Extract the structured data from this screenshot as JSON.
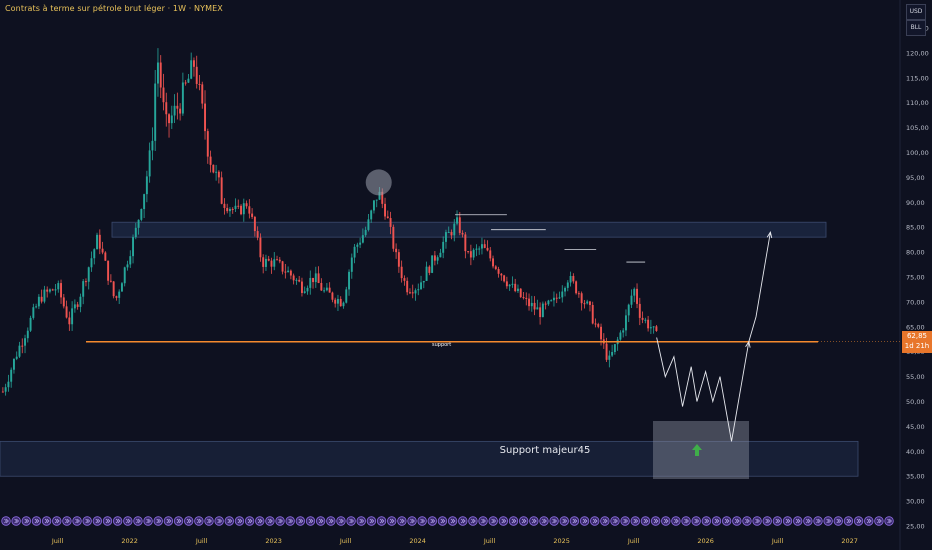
{
  "header": {
    "title": "Contrats à terme sur pétrole brut léger · 1W · NYMEX"
  },
  "currency": {
    "usd": "USD",
    "unit": "BLL"
  },
  "price_tag": {
    "value": "62,85",
    "countdown": "1d 21h"
  },
  "annotations": {
    "support": "support",
    "major_support": "Support majeur45"
  },
  "colors": {
    "up": "#26a69a",
    "down": "#ef5350",
    "support_line": "#f58a2e",
    "zone": "#1e2a46",
    "bg": "#0e1120"
  },
  "chart_data": {
    "type": "candlestick",
    "title": "Contrats à terme sur pétrole brut léger · 1W · NYMEX",
    "ylim": [
      23,
      127
    ],
    "y_ticks": [
      "25,00",
      "30,00",
      "35,00",
      "40,00",
      "45,00",
      "50,00",
      "55,00",
      "60,00",
      "65,00",
      "70,00",
      "75,00",
      "80,00",
      "85,00",
      "90,00",
      "95,00",
      "100,00",
      "105,00",
      "110,00",
      "115,00",
      "120,00",
      "125,00"
    ],
    "x_ticks": [
      "Juill",
      "2022",
      "Juill",
      "2023",
      "Juill",
      "2024",
      "Juill",
      "2025",
      "Juill",
      "2026",
      "Juill",
      "2027"
    ],
    "xlim": [
      2021.1,
      2027.35
    ],
    "x_tick_values": [
      2021.5,
      2022.0,
      2022.5,
      2023.0,
      2023.5,
      2024.0,
      2024.5,
      2025.0,
      2025.5,
      2026.0,
      2026.5,
      2027.0
    ],
    "price_anchors": [
      [
        2021.12,
        52
      ],
      [
        2021.22,
        60
      ],
      [
        2021.38,
        71
      ],
      [
        2021.5,
        73
      ],
      [
        2021.58,
        66
      ],
      [
        2021.65,
        71
      ],
      [
        2021.78,
        83
      ],
      [
        2021.9,
        70
      ],
      [
        2021.96,
        76
      ],
      [
        2022.05,
        85
      ],
      [
        2022.15,
        100
      ],
      [
        2022.19,
        120
      ],
      [
        2022.25,
        105
      ],
      [
        2022.35,
        110
      ],
      [
        2022.45,
        118
      ],
      [
        2022.55,
        100
      ],
      [
        2022.65,
        90
      ],
      [
        2022.75,
        88
      ],
      [
        2022.82,
        90
      ],
      [
        2022.92,
        78
      ],
      [
        2023.0,
        78
      ],
      [
        2023.1,
        76
      ],
      [
        2023.2,
        73
      ],
      [
        2023.28,
        75
      ],
      [
        2023.35,
        72
      ],
      [
        2023.48,
        70
      ],
      [
        2023.55,
        80
      ],
      [
        2023.65,
        85
      ],
      [
        2023.72,
        92
      ],
      [
        2023.78,
        88
      ],
      [
        2023.85,
        79
      ],
      [
        2023.92,
        73
      ],
      [
        2024.0,
        73
      ],
      [
        2024.1,
        78
      ],
      [
        2024.2,
        83
      ],
      [
        2024.28,
        86
      ],
      [
        2024.35,
        79
      ],
      [
        2024.45,
        81
      ],
      [
        2024.55,
        77
      ],
      [
        2024.65,
        73
      ],
      [
        2024.75,
        70
      ],
      [
        2024.85,
        68
      ],
      [
        2024.95,
        70
      ],
      [
        2025.04,
        75
      ],
      [
        2025.12,
        72
      ],
      [
        2025.2,
        68
      ],
      [
        2025.28,
        62
      ],
      [
        2025.33,
        58
      ],
      [
        2025.4,
        63
      ],
      [
        2025.45,
        67
      ],
      [
        2025.5,
        73
      ],
      [
        2025.55,
        67
      ],
      [
        2025.62,
        65
      ],
      [
        2025.66,
        62.85
      ]
    ],
    "support_level": 62,
    "resistance_zone": [
      83,
      86
    ],
    "major_support_zone": [
      35,
      42
    ],
    "highlight_circle": {
      "x": 2023.73,
      "y": 94
    },
    "projection": [
      [
        2025.66,
        62.85
      ],
      [
        2025.72,
        55
      ],
      [
        2025.78,
        59
      ],
      [
        2025.84,
        49
      ],
      [
        2025.9,
        57
      ],
      [
        2025.94,
        50
      ],
      [
        2026.0,
        56
      ],
      [
        2026.05,
        50
      ],
      [
        2026.1,
        55
      ],
      [
        2026.18,
        42
      ],
      [
        2026.3,
        62
      ],
      [
        2026.35,
        67
      ],
      [
        2026.45,
        84
      ]
    ],
    "peak_marks": [
      {
        "x0": 2024.26,
        "x1": 2024.62,
        "y": 87.5
      },
      {
        "x0": 2024.51,
        "x1": 2024.89,
        "y": 84.5
      },
      {
        "x0": 2025.02,
        "x1": 2025.24,
        "y": 80.5
      },
      {
        "x0": 2025.45,
        "x1": 2025.58,
        "y": 78
      }
    ],
    "legend": "none",
    "grid": false
  }
}
